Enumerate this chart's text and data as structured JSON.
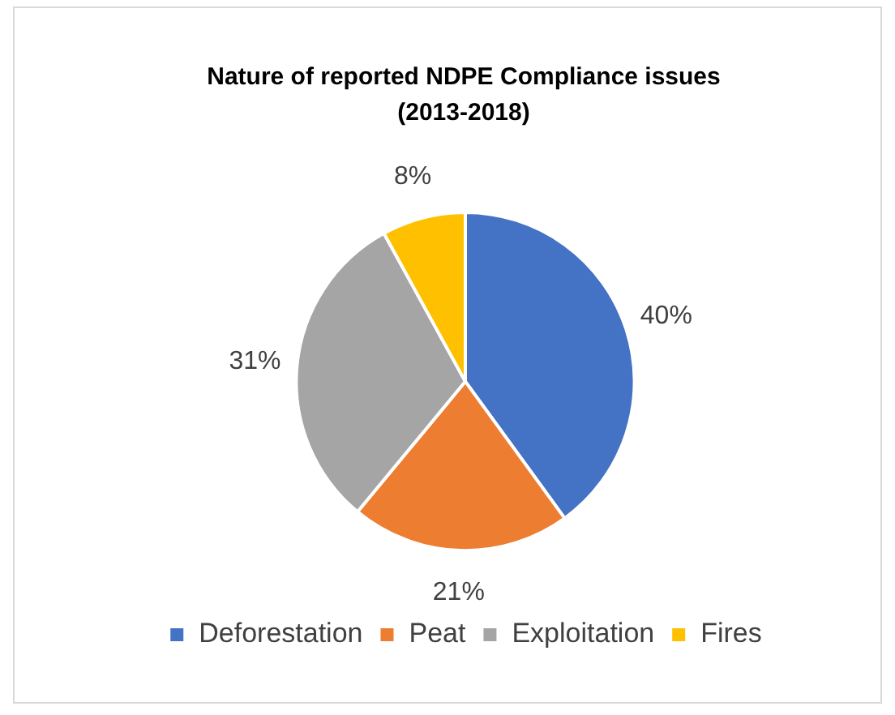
{
  "chart_data": {
    "type": "pie",
    "title": "Nature of reported NDPE Compliance issues (2013-2018)",
    "categories": [
      "Deforestation",
      "Peat",
      "Exploitation",
      "Fires"
    ],
    "values": [
      40,
      21,
      31,
      8
    ],
    "colors": [
      "#4472c4",
      "#ed7d31",
      "#a5a5a5",
      "#ffc000"
    ],
    "value_labels": [
      "40%",
      "21%",
      "31%",
      "8%"
    ],
    "legend": "bottom"
  }
}
